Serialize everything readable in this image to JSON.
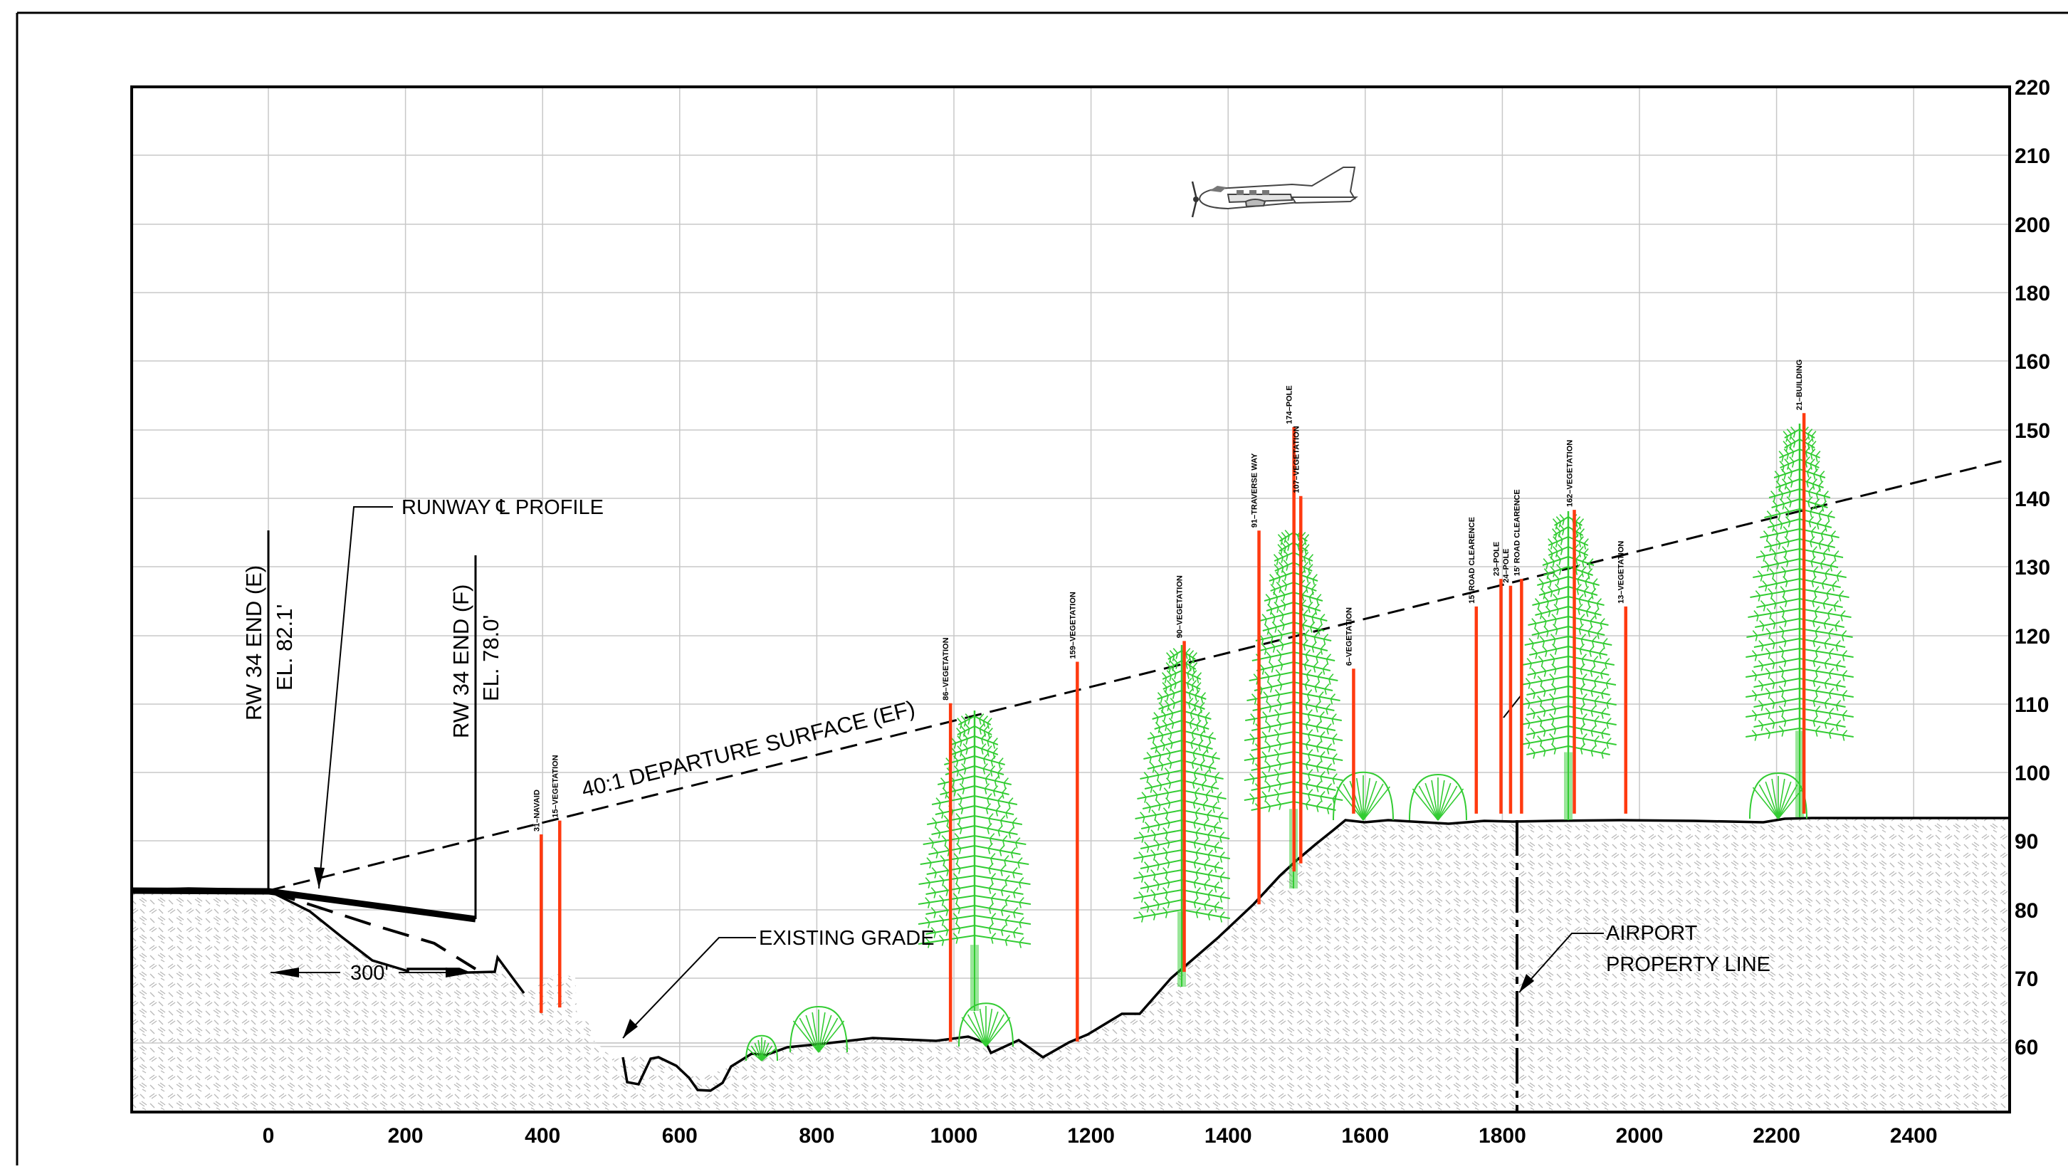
{
  "x_ticks": [
    "0",
    "200",
    "400",
    "600",
    "800",
    "1000",
    "1200",
    "1400",
    "1600",
    "1800",
    "2000",
    "2200",
    "2400"
  ],
  "y_ticks": [
    "220",
    "210",
    "200",
    "180",
    "160",
    "150",
    "140",
    "130",
    "120",
    "110",
    "100",
    "90",
    "80",
    "70",
    "60"
  ],
  "labels": {
    "runway_profile": "RUNWAY ℄ PROFILE",
    "rw_e_name": "RW 34 END (E)",
    "rw_e_elev": "EL. 82.1'",
    "rw_f_name": "RW 34 END (F)",
    "rw_f_elev": "EL. 78.0'",
    "departure": "40:1 DEPARTURE SURFACE (EF)",
    "existing_grade": "EXISTING GRADE",
    "property_line_1": "AIRPORT",
    "property_line_2": "PROPERTY LINE",
    "dim_300": "300'"
  },
  "obstructions": [
    {
      "label": "31–NAVAID",
      "x": 398,
      "top": 90
    },
    {
      "label": "15–VEGETATION",
      "x": 425,
      "top": 92
    },
    {
      "label": "86–VEGETATION",
      "x": 995,
      "top": 109
    },
    {
      "label": "159–VEGETATION",
      "x": 1180,
      "top": 115
    },
    {
      "label": "90–VEGETATION",
      "x": 1336,
      "top": 118
    },
    {
      "label": "91–TRAVERSE WAY",
      "x": 1445,
      "top": 134
    },
    {
      "label": "174–POLE",
      "x": 1496,
      "top": 149
    },
    {
      "label": "107–VEGETATION",
      "x": 1506,
      "top": 139
    },
    {
      "label": "6–VEGETATION",
      "x": 1583,
      "top": 114
    },
    {
      "label": "15' ROAD CLEARENCE",
      "x": 1762,
      "top": 123
    },
    {
      "label": "23–POLE",
      "x": 1798,
      "top": 127
    },
    {
      "label": "24–POLE",
      "x": 1812,
      "top": 126
    },
    {
      "label": "15' ROAD CLEARENCE",
      "x": 1828,
      "top": 127
    },
    {
      "label": "162–VEGETATION",
      "x": 1905,
      "top": 137
    },
    {
      "label": "13–VEGETATION",
      "x": 1980,
      "top": 123
    },
    {
      "label": "21–BUILDING",
      "x": 2240,
      "top": 151
    }
  ],
  "colors": {
    "obstruction": "#ff3a10",
    "tree": "#33cc33",
    "line": "#000000",
    "grid": "#c8c8c8"
  },
  "icons": [
    "airplane-icon",
    "conifer-tree-icon",
    "shrub-icon"
  ]
}
